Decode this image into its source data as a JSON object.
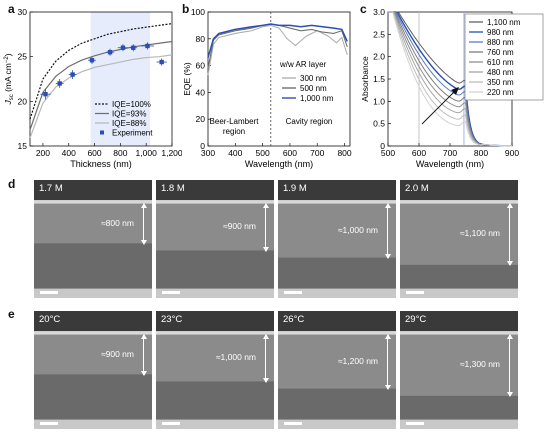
{
  "panels": {
    "a": {
      "label": "a"
    },
    "b": {
      "label": "b"
    },
    "c": {
      "label": "c"
    },
    "d": {
      "label": "d",
      "images": [
        {
          "condition": "1.7 M",
          "thickness": "≈800 nm"
        },
        {
          "condition": "1.8 M",
          "thickness": "≈900 nm"
        },
        {
          "condition": "1.9 M",
          "thickness": "≈1,000 nm"
        },
        {
          "condition": "2.0 M",
          "thickness": "≈1,100 nm"
        }
      ]
    },
    "e": {
      "label": "e",
      "images": [
        {
          "condition": "20°C",
          "thickness": "≈900 nm"
        },
        {
          "condition": "23°C",
          "thickness": "≈1,000 nm"
        },
        {
          "condition": "26°C",
          "thickness": "≈1,200 nm"
        },
        {
          "condition": "29°C",
          "thickness": "≈1,300 nm"
        }
      ]
    }
  },
  "chart_data": [
    {
      "type": "line",
      "panel": "a",
      "xlabel": "Thickness (nm)",
      "ylabel": "J_sc (mA cm⁻²)",
      "ylabel_main": "J",
      "ylabel_sub": "sc",
      "ylabel_unit": " (mA cm",
      "ylabel_exp": "−2",
      "ylabel_close": ")",
      "xlim": [
        100,
        1200
      ],
      "ylim": [
        15,
        30
      ],
      "x_ticks": [
        200,
        400,
        600,
        800,
        1000,
        1200
      ],
      "x_tick_labels": [
        "200",
        "400",
        "600",
        "800",
        "1,000",
        "1,200"
      ],
      "y_ticks": [
        15,
        20,
        25,
        30
      ],
      "shaded_region": [
        570,
        1030
      ],
      "legend_position": "bottom-right",
      "series": [
        {
          "name": "IQE=100%",
          "style": "dotted",
          "color": "#111111",
          "x": [
            100,
            200,
            300,
            400,
            500,
            600,
            700,
            800,
            900,
            1000,
            1100,
            1200
          ],
          "y": [
            18.0,
            22.5,
            24.5,
            25.7,
            26.5,
            27.0,
            27.5,
            27.8,
            28.1,
            28.3,
            28.5,
            28.7
          ]
        },
        {
          "name": "IQE=93%",
          "style": "solid",
          "color": "#6e6e6e",
          "x": [
            100,
            200,
            300,
            400,
            500,
            600,
            700,
            800,
            900,
            1000,
            1100,
            1200
          ],
          "y": [
            16.8,
            21.0,
            22.8,
            23.9,
            24.6,
            25.1,
            25.5,
            25.8,
            26.1,
            26.3,
            26.5,
            26.7
          ]
        },
        {
          "name": "IQE=88%",
          "style": "solid",
          "color": "#b8b8b8",
          "x": [
            100,
            200,
            300,
            400,
            500,
            600,
            700,
            800,
            900,
            1000,
            1100,
            1200
          ],
          "y": [
            15.9,
            19.8,
            21.6,
            22.6,
            23.3,
            23.8,
            24.1,
            24.4,
            24.7,
            24.9,
            25.0,
            25.2
          ]
        },
        {
          "name": "Experiment",
          "style": "markers",
          "color": "#2a4fb0",
          "x": [
            220,
            330,
            430,
            580,
            720,
            820,
            900,
            1010,
            1120
          ],
          "y": [
            20.8,
            22.0,
            23.0,
            24.6,
            25.5,
            26.0,
            26.0,
            26.2,
            24.4
          ],
          "xerr": [
            40,
            30,
            30,
            30,
            30,
            40,
            30,
            50,
            40
          ],
          "yerr": [
            0.6,
            0.5,
            0.5,
            0.4,
            0.4,
            0.4,
            0.4,
            0.4,
            0.4
          ]
        }
      ]
    },
    {
      "type": "line",
      "panel": "b",
      "xlabel": "Wavelength (nm)",
      "ylabel": "EQE (%)",
      "xlim": [
        300,
        820
      ],
      "ylim": [
        0,
        100
      ],
      "x_ticks": [
        300,
        400,
        500,
        600,
        700,
        800
      ],
      "y_ticks": [
        0,
        20,
        40,
        60,
        80,
        100
      ],
      "divider_x": 530,
      "region_labels": [
        "Beer-Lambert region",
        "Cavity region"
      ],
      "region_left_line1": "Beer-Lambert",
      "region_left_line2": "region",
      "region_right": "Cavity region",
      "legend_title": "w/w AR layer",
      "legend_position": "right",
      "series": [
        {
          "name": "300 nm",
          "color": "#b0b0b0",
          "x": [
            300,
            320,
            340,
            360,
            380,
            400,
            430,
            460,
            500,
            530,
            560,
            590,
            620,
            660,
            700,
            740,
            770,
            790,
            810
          ],
          "y": [
            53,
            76,
            81,
            82,
            83,
            84,
            85,
            86,
            89,
            90,
            88,
            80,
            75,
            82,
            86,
            82,
            77,
            81,
            68
          ]
        },
        {
          "name": "500 nm",
          "color": "#707070",
          "x": [
            300,
            320,
            340,
            360,
            380,
            400,
            430,
            460,
            500,
            530,
            560,
            600,
            640,
            680,
            720,
            760,
            790,
            810
          ],
          "y": [
            58,
            79,
            83,
            84,
            85,
            86,
            87,
            88,
            90,
            91,
            90,
            88,
            86,
            87,
            85,
            84,
            86,
            74
          ]
        },
        {
          "name": "1,000 nm",
          "color": "#2a4fb0",
          "x": [
            300,
            320,
            340,
            360,
            380,
            400,
            430,
            460,
            500,
            530,
            560,
            600,
            640,
            680,
            720,
            760,
            790,
            810
          ],
          "y": [
            66,
            80,
            84,
            85,
            86,
            87,
            88,
            89,
            90,
            91,
            90,
            90,
            89,
            90,
            89,
            88,
            87,
            78
          ]
        }
      ]
    },
    {
      "type": "line",
      "panel": "c",
      "xlabel": "Wavelength (nm)",
      "ylabel": "Absorbance",
      "xlim": [
        500,
        900
      ],
      "ylim": [
        0,
        3.0
      ],
      "x_ticks": [
        500,
        600,
        700,
        800,
        900
      ],
      "y_ticks": [
        0,
        0.5,
        1.0,
        1.5,
        2.0,
        2.5,
        3.0
      ],
      "y_tick_labels": [
        "0",
        "0.5",
        "1.0",
        "1.5",
        "2.0",
        "2.5",
        "3.0"
      ],
      "vlines": [
        600,
        745
      ],
      "legend_position": "right",
      "series": [
        {
          "name": "1,100 nm",
          "color": "#606060",
          "edge": 1.35
        },
        {
          "name": "980 nm",
          "color": "#2a4fb0",
          "edge": 1.22
        },
        {
          "name": "880 nm",
          "color": "#5b7bd0",
          "edge": 1.1
        },
        {
          "name": "760 nm",
          "color": "#7d7d7d",
          "edge": 0.97
        },
        {
          "name": "610 nm",
          "color": "#909090",
          "edge": 0.85
        },
        {
          "name": "480 nm",
          "color": "#a5a5a5",
          "edge": 0.72
        },
        {
          "name": "350 nm",
          "color": "#bdbdbd",
          "edge": 0.58
        },
        {
          "name": "220 nm",
          "color": "#d2d2d2",
          "edge": 0.44
        }
      ]
    }
  ]
}
